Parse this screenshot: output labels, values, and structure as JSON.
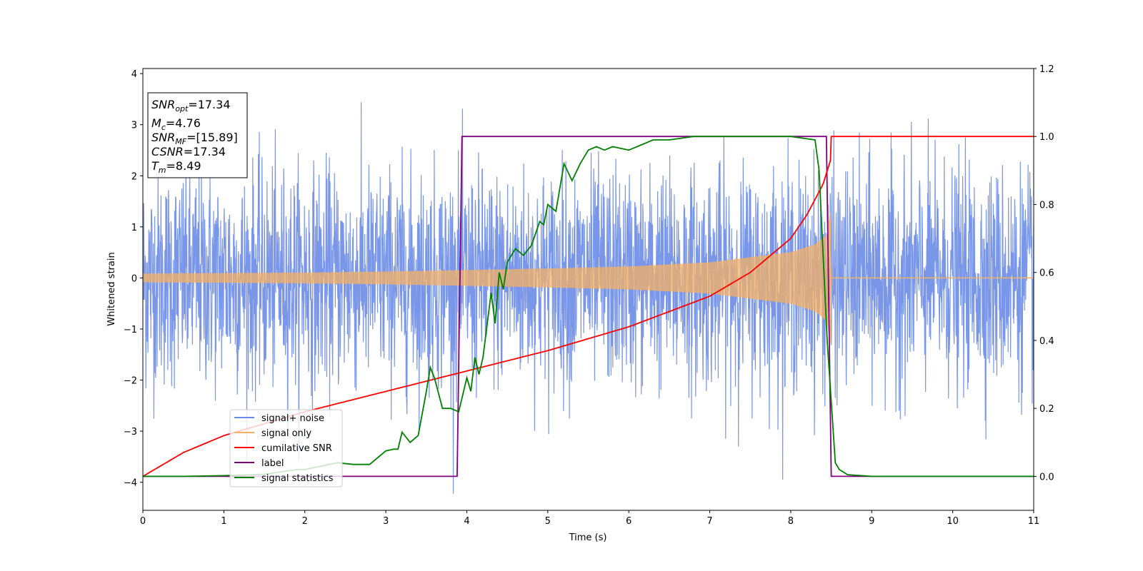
{
  "chart_data": {
    "type": "line",
    "xlabel": "Time (s)",
    "ylabel": "Whitened strain",
    "xlim": [
      0,
      11
    ],
    "ylim": [
      -4.55,
      4.1
    ],
    "y2lim": [
      -0.1,
      1.2
    ],
    "xticks": [
      0,
      1,
      2,
      3,
      4,
      5,
      6,
      7,
      8,
      9,
      10,
      11
    ],
    "yticks": [
      -4,
      -3,
      -2,
      -1,
      0,
      1,
      2,
      3,
      4
    ],
    "y2ticks": [
      "0.0",
      "0.2",
      "0.4",
      "0.6",
      "0.8",
      "1.0",
      "1.2"
    ],
    "grid": false,
    "legend_placement": "lower-left",
    "info_box": {
      "snr_opt": "=17.34",
      "mc": "=4.76",
      "snr_mf": "=[15.89]",
      "csnr": "=17.34",
      "tm": "=8.49"
    },
    "colors": {
      "signal_noise": "#6a8be6",
      "signal_only": "#f5b064",
      "cumulative_snr": "#ff0000",
      "label": "#800080",
      "signal_statistics": "#008000"
    },
    "series": [
      {
        "name": "signal+ noise",
        "axis": "left",
        "description_values": {
          "noise_std": 1.0,
          "t_start": 0,
          "t_end": 11
        }
      },
      {
        "name": "signal only",
        "axis": "left",
        "envelope": {
          "x": [
            0,
            1,
            2,
            3,
            4,
            5,
            6,
            7,
            8,
            8.3,
            8.45,
            8.49,
            8.5,
            11
          ],
          "amp": [
            0.08,
            0.09,
            0.1,
            0.12,
            0.15,
            0.18,
            0.22,
            0.3,
            0.5,
            0.65,
            0.85,
            1.3,
            0.0,
            0.0
          ]
        }
      },
      {
        "name": "cumilative SNR",
        "axis": "right",
        "x": [
          0,
          0.5,
          1,
          2,
          3,
          4,
          5,
          6,
          7,
          7.5,
          8,
          8.2,
          8.4,
          8.49,
          8.5,
          11
        ],
        "y": [
          0.0,
          0.07,
          0.12,
          0.19,
          0.25,
          0.31,
          0.37,
          0.44,
          0.53,
          0.6,
          0.7,
          0.77,
          0.86,
          0.93,
          1.0,
          1.0
        ]
      },
      {
        "name": "label",
        "axis": "right",
        "x": [
          0,
          3.88,
          3.94,
          8.44,
          8.5,
          11
        ],
        "y": [
          0,
          0,
          1,
          1,
          0,
          0
        ]
      },
      {
        "name": "signal statistics",
        "axis": "right",
        "x": [
          0,
          0.5,
          1,
          1.5,
          1.9,
          2.0,
          2.2,
          2.4,
          2.6,
          2.8,
          2.9,
          3.0,
          3.1,
          3.15,
          3.2,
          3.3,
          3.4,
          3.5,
          3.55,
          3.6,
          3.7,
          3.8,
          3.9,
          4.0,
          4.05,
          4.1,
          4.15,
          4.2,
          4.3,
          4.35,
          4.4,
          4.45,
          4.5,
          4.6,
          4.7,
          4.8,
          4.9,
          4.95,
          5.0,
          5.1,
          5.2,
          5.3,
          5.4,
          5.5,
          5.6,
          5.7,
          5.8,
          6.0,
          6.3,
          6.5,
          6.8,
          7.0,
          7.5,
          8.0,
          8.3,
          8.35,
          8.45,
          8.55,
          8.6,
          8.7,
          9.0,
          11
        ],
        "y": [
          0,
          0.0,
          0.002,
          0.006,
          0.02,
          0.02,
          0.03,
          0.04,
          0.035,
          0.035,
          0.055,
          0.075,
          0.08,
          0.08,
          0.13,
          0.1,
          0.12,
          0.25,
          0.32,
          0.29,
          0.2,
          0.2,
          0.19,
          0.29,
          0.25,
          0.35,
          0.3,
          0.35,
          0.54,
          0.45,
          0.6,
          0.55,
          0.63,
          0.67,
          0.65,
          0.68,
          0.75,
          0.74,
          0.8,
          0.78,
          0.92,
          0.87,
          0.92,
          0.96,
          0.97,
          0.96,
          0.97,
          0.96,
          0.99,
          0.99,
          1.0,
          1.0,
          1.0,
          1.0,
          0.99,
          0.9,
          0.4,
          0.04,
          0.02,
          0.005,
          0.0,
          0.0
        ]
      }
    ]
  }
}
